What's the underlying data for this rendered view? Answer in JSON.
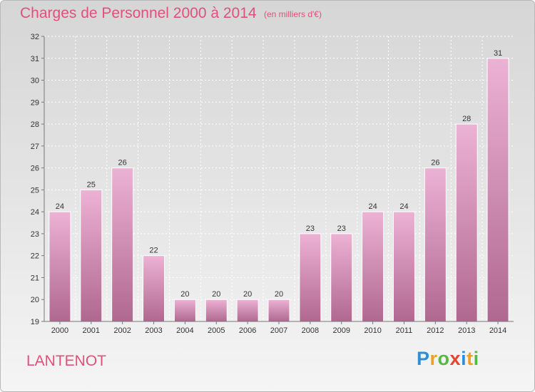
{
  "header": {
    "title": "Charges de Personnel 2000 à 2014",
    "subtitle": "(en milliers d'€)"
  },
  "footer": {
    "commune": "LANTENOT",
    "logo_letters": [
      "P",
      "r",
      "o",
      "x",
      "i",
      "t",
      "i"
    ]
  },
  "colors": {
    "accent": "#e0507a",
    "bar_top": "#ecb2d4",
    "bar_bottom": "#b06890"
  },
  "chart_data": {
    "type": "bar",
    "title": "Charges de Personnel 2000 à 2014",
    "subtitle": "(en milliers d'€)",
    "xlabel": "",
    "ylabel": "",
    "categories": [
      "2000",
      "2001",
      "2002",
      "2003",
      "2004",
      "2005",
      "2006",
      "2007",
      "2008",
      "2009",
      "2010",
      "2011",
      "2012",
      "2013",
      "2014"
    ],
    "values": [
      24,
      25,
      26,
      22,
      20,
      20,
      20,
      20,
      23,
      23,
      24,
      24,
      26,
      28,
      31
    ],
    "ylim": [
      19,
      32
    ],
    "yticks": [
      19,
      20,
      21,
      22,
      23,
      24,
      25,
      26,
      27,
      28,
      29,
      30,
      31,
      32
    ],
    "grid": true,
    "legend": "none"
  }
}
